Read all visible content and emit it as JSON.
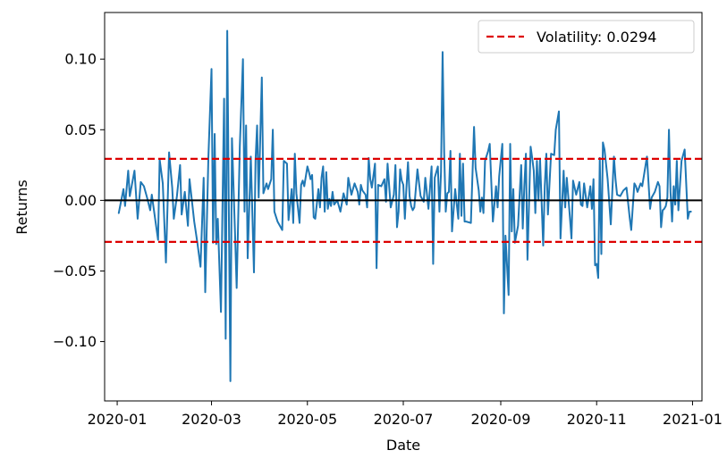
{
  "chart_data": {
    "type": "line",
    "xlabel": "Date",
    "ylabel": "Returns",
    "xlim": [
      "2019-12-24",
      "2021-01-07"
    ],
    "ylim": [
      -0.142,
      0.133
    ],
    "grid": false,
    "legend_position": "top-right",
    "x_ticks": [
      {
        "date": "2020-01-01",
        "label": "2020-01"
      },
      {
        "date": "2020-03-01",
        "label": "2020-03"
      },
      {
        "date": "2020-05-01",
        "label": "2020-05"
      },
      {
        "date": "2020-07-01",
        "label": "2020-07"
      },
      {
        "date": "2020-09-01",
        "label": "2020-09"
      },
      {
        "date": "2020-11-01",
        "label": "2020-11"
      },
      {
        "date": "2021-01-01",
        "label": "2021-01"
      }
    ],
    "y_ticks": [
      {
        "value": 0.1,
        "label": "0.10"
      },
      {
        "value": 0.05,
        "label": "0.05"
      },
      {
        "value": 0.0,
        "label": "0.00"
      },
      {
        "value": -0.05,
        "label": "−0.05"
      },
      {
        "value": -0.1,
        "label": "−0.10"
      }
    ],
    "series": [
      {
        "color": "#1f77b4",
        "points": [
          [
            "2020-01-02",
            -0.009
          ],
          [
            "2020-01-05",
            0.008
          ],
          [
            "2020-01-06",
            -0.004
          ],
          [
            "2020-01-08",
            0.021
          ],
          [
            "2020-01-09",
            0.003
          ],
          [
            "2020-01-12",
            0.021
          ],
          [
            "2020-01-14",
            -0.013
          ],
          [
            "2020-01-16",
            0.013
          ],
          [
            "2020-01-18",
            0.01
          ],
          [
            "2020-01-20",
            0.002
          ],
          [
            "2020-01-22",
            -0.007
          ],
          [
            "2020-01-23",
            0.004
          ],
          [
            "2020-01-25",
            -0.012
          ],
          [
            "2020-01-27",
            -0.028
          ],
          [
            "2020-01-28",
            0.029
          ],
          [
            "2020-01-30",
            0.012
          ],
          [
            "2020-02-01",
            -0.044
          ],
          [
            "2020-02-03",
            0.034
          ],
          [
            "2020-02-05",
            0.009
          ],
          [
            "2020-02-06",
            -0.013
          ],
          [
            "2020-02-08",
            0.003
          ],
          [
            "2020-02-10",
            0.025
          ],
          [
            "2020-02-11",
            -0.01
          ],
          [
            "2020-02-13",
            0.006
          ],
          [
            "2020-02-15",
            -0.018
          ],
          [
            "2020-02-16",
            0.015
          ],
          [
            "2020-02-19",
            -0.015
          ],
          [
            "2020-02-21",
            -0.03
          ],
          [
            "2020-02-23",
            -0.047
          ],
          [
            "2020-02-25",
            0.016
          ],
          [
            "2020-02-26",
            -0.065
          ],
          [
            "2020-02-28",
            0.03
          ],
          [
            "2020-03-01",
            0.093
          ],
          [
            "2020-03-02",
            -0.03
          ],
          [
            "2020-03-03",
            0.047
          ],
          [
            "2020-03-04",
            -0.031
          ],
          [
            "2020-03-05",
            -0.013
          ],
          [
            "2020-03-07",
            -0.079
          ],
          [
            "2020-03-09",
            0.072
          ],
          [
            "2020-03-10",
            -0.098
          ],
          [
            "2020-03-11",
            0.12
          ],
          [
            "2020-03-12",
            -0.004
          ],
          [
            "2020-03-13",
            -0.128
          ],
          [
            "2020-03-14",
            0.044
          ],
          [
            "2020-03-16",
            -0.025
          ],
          [
            "2020-03-17",
            -0.062
          ],
          [
            "2020-03-19",
            0.038
          ],
          [
            "2020-03-21",
            0.1
          ],
          [
            "2020-03-22",
            -0.008
          ],
          [
            "2020-03-23",
            0.053
          ],
          [
            "2020-03-24",
            -0.041
          ],
          [
            "2020-03-26",
            0.031
          ],
          [
            "2020-03-28",
            -0.051
          ],
          [
            "2020-03-29",
            0.028
          ],
          [
            "2020-03-30",
            0.053
          ],
          [
            "2020-03-31",
            0.002
          ],
          [
            "2020-04-02",
            0.087
          ],
          [
            "2020-04-03",
            0.005
          ],
          [
            "2020-04-05",
            0.012
          ],
          [
            "2020-04-06",
            0.008
          ],
          [
            "2020-04-08",
            0.015
          ],
          [
            "2020-04-09",
            0.05
          ],
          [
            "2020-04-10",
            -0.008
          ],
          [
            "2020-04-12",
            -0.015
          ],
          [
            "2020-04-15",
            -0.021
          ],
          [
            "2020-04-16",
            0.028
          ],
          [
            "2020-04-18",
            0.026
          ],
          [
            "2020-04-19",
            -0.014
          ],
          [
            "2020-04-21",
            0.008
          ],
          [
            "2020-04-22",
            -0.016
          ],
          [
            "2020-04-23",
            0.033
          ],
          [
            "2020-04-24",
            0.005
          ],
          [
            "2020-04-26",
            -0.016
          ],
          [
            "2020-04-27",
            0.011
          ],
          [
            "2020-04-28",
            0.014
          ],
          [
            "2020-04-29",
            0.01
          ],
          [
            "2020-05-01",
            0.024
          ],
          [
            "2020-05-02",
            0.02
          ],
          [
            "2020-05-03",
            0.015
          ],
          [
            "2020-05-04",
            0.018
          ],
          [
            "2020-05-05",
            -0.012
          ],
          [
            "2020-05-06",
            -0.013
          ],
          [
            "2020-05-08",
            0.008
          ],
          [
            "2020-05-09",
            -0.005
          ],
          [
            "2020-05-10",
            0.016
          ],
          [
            "2020-05-11",
            0.024
          ],
          [
            "2020-05-12",
            -0.008
          ],
          [
            "2020-05-13",
            0.02
          ],
          [
            "2020-05-14",
            -0.006
          ],
          [
            "2020-05-15",
            0.001
          ],
          [
            "2020-05-16",
            -0.004
          ],
          [
            "2020-05-17",
            0.006
          ],
          [
            "2020-05-18",
            -0.003
          ],
          [
            "2020-05-20",
            0.0
          ],
          [
            "2020-05-22",
            -0.008
          ],
          [
            "2020-05-24",
            0.005
          ],
          [
            "2020-05-26",
            -0.003
          ],
          [
            "2020-05-27",
            0.016
          ],
          [
            "2020-05-29",
            0.004
          ],
          [
            "2020-05-31",
            0.012
          ],
          [
            "2020-06-02",
            0.006
          ],
          [
            "2020-06-03",
            -0.003
          ],
          [
            "2020-06-04",
            0.011
          ],
          [
            "2020-06-05",
            0.007
          ],
          [
            "2020-06-07",
            0.004
          ],
          [
            "2020-06-08",
            -0.005
          ],
          [
            "2020-06-09",
            0.03
          ],
          [
            "2020-06-10",
            0.015
          ],
          [
            "2020-06-11",
            0.009
          ],
          [
            "2020-06-13",
            0.026
          ],
          [
            "2020-06-14",
            -0.048
          ],
          [
            "2020-06-15",
            0.011
          ],
          [
            "2020-06-17",
            0.01
          ],
          [
            "2020-06-19",
            0.015
          ],
          [
            "2020-06-20",
            -0.001
          ],
          [
            "2020-06-21",
            0.026
          ],
          [
            "2020-06-23",
            -0.005
          ],
          [
            "2020-06-25",
            0.004
          ],
          [
            "2020-06-26",
            0.025
          ],
          [
            "2020-06-27",
            -0.019
          ],
          [
            "2020-06-28",
            -0.008
          ],
          [
            "2020-06-29",
            0.022
          ],
          [
            "2020-06-30",
            0.014
          ],
          [
            "2020-07-01",
            0.011
          ],
          [
            "2020-07-02",
            -0.013
          ],
          [
            "2020-07-03",
            0.009
          ],
          [
            "2020-07-04",
            0.027
          ],
          [
            "2020-07-05",
            0.003
          ],
          [
            "2020-07-06",
            -0.004
          ],
          [
            "2020-07-07",
            -0.007
          ],
          [
            "2020-07-08",
            -0.005
          ],
          [
            "2020-07-10",
            0.022
          ],
          [
            "2020-07-12",
            0.003
          ],
          [
            "2020-07-14",
            -0.001
          ],
          [
            "2020-07-15",
            0.016
          ],
          [
            "2020-07-17",
            -0.006
          ],
          [
            "2020-07-19",
            0.024
          ],
          [
            "2020-07-20",
            -0.045
          ],
          [
            "2020-07-21",
            0.016
          ],
          [
            "2020-07-23",
            0.024
          ],
          [
            "2020-07-24",
            -0.008
          ],
          [
            "2020-07-25",
            0.02
          ],
          [
            "2020-07-26",
            0.105
          ],
          [
            "2020-07-27",
            0.034
          ],
          [
            "2020-07-28",
            -0.008
          ],
          [
            "2020-07-29",
            0.005
          ],
          [
            "2020-07-30",
            0.006
          ],
          [
            "2020-07-31",
            0.035
          ],
          [
            "2020-08-01",
            -0.022
          ],
          [
            "2020-08-03",
            0.008
          ],
          [
            "2020-08-05",
            -0.013
          ],
          [
            "2020-08-06",
            0.033
          ],
          [
            "2020-08-07",
            -0.011
          ],
          [
            "2020-08-08",
            0.026
          ],
          [
            "2020-08-09",
            -0.015
          ],
          [
            "2020-08-10",
            -0.015
          ],
          [
            "2020-08-13",
            -0.016
          ],
          [
            "2020-08-15",
            0.052
          ],
          [
            "2020-08-16",
            0.023
          ],
          [
            "2020-08-18",
            0.007
          ],
          [
            "2020-08-19",
            -0.008
          ],
          [
            "2020-08-20",
            0.002
          ],
          [
            "2020-08-21",
            -0.009
          ],
          [
            "2020-08-22",
            0.028
          ],
          [
            "2020-08-24",
            0.035
          ],
          [
            "2020-08-25",
            0.04
          ],
          [
            "2020-08-27",
            -0.015
          ],
          [
            "2020-08-29",
            0.01
          ],
          [
            "2020-08-30",
            -0.005
          ],
          [
            "2020-08-31",
            0.017
          ],
          [
            "2020-09-02",
            0.04
          ],
          [
            "2020-09-03",
            -0.08
          ],
          [
            "2020-09-04",
            -0.025
          ],
          [
            "2020-09-06",
            -0.067
          ],
          [
            "2020-09-07",
            0.04
          ],
          [
            "2020-09-08",
            -0.022
          ],
          [
            "2020-09-09",
            0.008
          ],
          [
            "2020-09-10",
            -0.03
          ],
          [
            "2020-09-12",
            -0.018
          ],
          [
            "2020-09-14",
            0.025
          ],
          [
            "2020-09-15",
            -0.02
          ],
          [
            "2020-09-16",
            0.01
          ],
          [
            "2020-09-17",
            0.033
          ],
          [
            "2020-09-18",
            -0.042
          ],
          [
            "2020-09-20",
            0.038
          ],
          [
            "2020-09-21",
            0.03
          ],
          [
            "2020-09-22",
            0.021
          ],
          [
            "2020-09-23",
            -0.009
          ],
          [
            "2020-09-24",
            0.028
          ],
          [
            "2020-09-25",
            0.0
          ],
          [
            "2020-09-26",
            0.029
          ],
          [
            "2020-09-28",
            -0.032
          ],
          [
            "2020-09-29",
            0.01
          ],
          [
            "2020-09-30",
            0.033
          ],
          [
            "2020-10-01",
            -0.01
          ],
          [
            "2020-10-03",
            0.033
          ],
          [
            "2020-10-05",
            0.032
          ],
          [
            "2020-10-06",
            0.05
          ],
          [
            "2020-10-08",
            0.063
          ],
          [
            "2020-10-09",
            -0.027
          ],
          [
            "2020-10-11",
            0.021
          ],
          [
            "2020-10-12",
            -0.005
          ],
          [
            "2020-10-13",
            0.016
          ],
          [
            "2020-10-15",
            -0.012
          ],
          [
            "2020-10-16",
            -0.027
          ],
          [
            "2020-10-17",
            0.014
          ],
          [
            "2020-10-19",
            0.004
          ],
          [
            "2020-10-21",
            0.013
          ],
          [
            "2020-10-22",
            -0.003
          ],
          [
            "2020-10-23",
            -0.004
          ],
          [
            "2020-10-24",
            0.012
          ],
          [
            "2020-10-26",
            -0.005
          ],
          [
            "2020-10-28",
            0.01
          ],
          [
            "2020-10-29",
            -0.006
          ],
          [
            "2020-10-30",
            0.015
          ],
          [
            "2020-10-31",
            -0.046
          ],
          [
            "2020-11-01",
            -0.045
          ],
          [
            "2020-11-02",
            -0.055
          ],
          [
            "2020-11-03",
            0.03
          ],
          [
            "2020-11-04",
            -0.038
          ],
          [
            "2020-11-05",
            0.041
          ],
          [
            "2020-11-06",
            0.036
          ],
          [
            "2020-11-08",
            0.015
          ],
          [
            "2020-11-10",
            -0.017
          ],
          [
            "2020-11-12",
            0.031
          ],
          [
            "2020-11-13",
            0.015
          ],
          [
            "2020-11-14",
            0.004
          ],
          [
            "2020-11-16",
            0.003
          ],
          [
            "2020-11-18",
            0.007
          ],
          [
            "2020-11-20",
            0.009
          ],
          [
            "2020-11-22",
            -0.012
          ],
          [
            "2020-11-23",
            -0.021
          ],
          [
            "2020-11-25",
            0.012
          ],
          [
            "2020-11-26",
            0.01
          ],
          [
            "2020-11-27",
            0.006
          ],
          [
            "2020-11-29",
            0.012
          ],
          [
            "2020-11-30",
            0.01
          ],
          [
            "2020-12-01",
            0.017
          ],
          [
            "2020-12-03",
            0.031
          ],
          [
            "2020-12-05",
            -0.006
          ],
          [
            "2020-12-06",
            0.002
          ],
          [
            "2020-12-08",
            0.006
          ],
          [
            "2020-12-10",
            0.013
          ],
          [
            "2020-12-11",
            0.01
          ],
          [
            "2020-12-12",
            -0.019
          ],
          [
            "2020-12-13",
            -0.007
          ],
          [
            "2020-12-14",
            -0.006
          ],
          [
            "2020-12-15",
            -0.004
          ],
          [
            "2020-12-16",
            0.002
          ],
          [
            "2020-12-17",
            0.05
          ],
          [
            "2020-12-18",
            0.006
          ],
          [
            "2020-12-19",
            -0.015
          ],
          [
            "2020-12-20",
            0.01
          ],
          [
            "2020-12-21",
            -0.003
          ],
          [
            "2020-12-22",
            0.028
          ],
          [
            "2020-12-23",
            -0.007
          ],
          [
            "2020-12-25",
            0.028
          ],
          [
            "2020-12-27",
            0.036
          ],
          [
            "2020-12-29",
            -0.013
          ],
          [
            "2020-12-30",
            -0.008
          ],
          [
            "2020-12-31",
            -0.008
          ]
        ]
      }
    ],
    "zero_line": {
      "value": 0.0,
      "color": "#000000"
    },
    "volatility_band": {
      "value": 0.0294,
      "color": "#dd0000",
      "legend_label": "Volatility: 0.0294"
    }
  }
}
